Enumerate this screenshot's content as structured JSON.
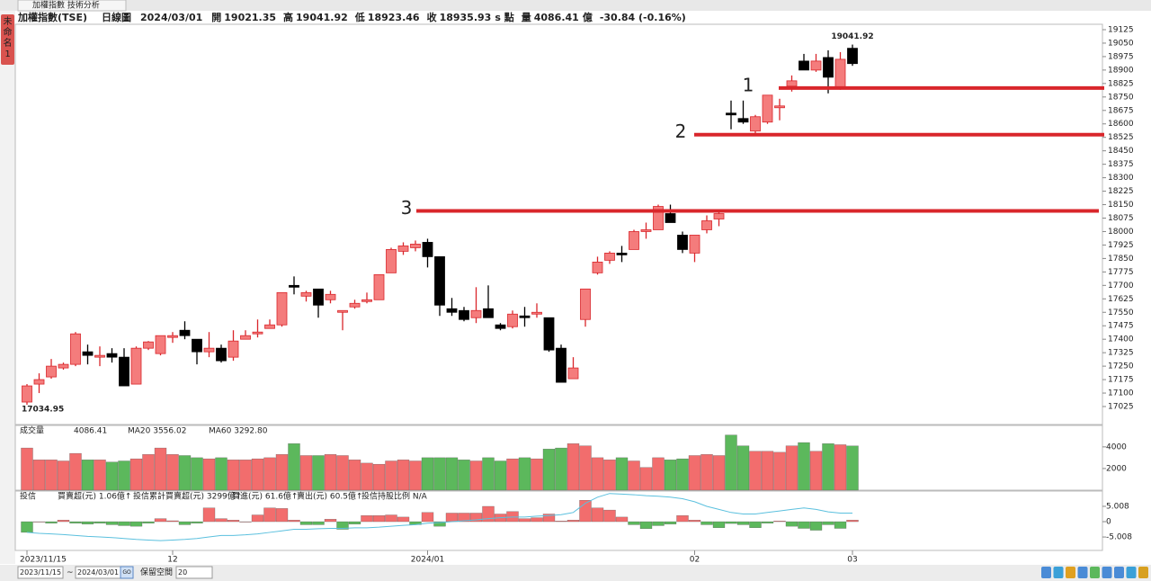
{
  "window_title": "加權指數 技術分析",
  "side_tab": "未命名1",
  "header": {
    "symbol": "加權指數(TSE)",
    "period": "日線圖",
    "date": "2024/03/01",
    "open_label": "開",
    "high_label": "高",
    "low_label": "低",
    "close_label": "收",
    "point_unit": "s 點",
    "volume_label": "量",
    "volume_unit": "億",
    "change": "-30.84 (-0.16%)"
  },
  "chart_data": {
    "type": "candlestick",
    "xlabels": [
      {
        "value": 0,
        "label": "2023/11/15"
      },
      {
        "value": 12,
        "label": "12"
      },
      {
        "value": 33,
        "label": "2024/01"
      },
      {
        "value": 55,
        "label": "02"
      },
      {
        "value": 68,
        "label": "03"
      }
    ],
    "open": [
      17050,
      17150,
      17190,
      17240,
      17260,
      17330,
      17300,
      17320,
      17300,
      17150,
      17350,
      17320,
      17410,
      17450,
      17400,
      17330,
      17350,
      17300,
      17400,
      17430,
      17460,
      17480,
      17700,
      17640,
      17680,
      17620,
      17550,
      17580,
      17610,
      17620,
      17770,
      17890,
      17910,
      17940,
      17860,
      17570,
      17560,
      17520,
      17570,
      17480,
      17470,
      17530,
      17540,
      17520,
      17350,
      17180,
      17510,
      17770,
      17840,
      17880,
      17900,
      18000,
      18010,
      18100,
      17980,
      17880,
      18010,
      18070,
      18660,
      18630,
      18560,
      18610,
      18690,
      18810,
      18950,
      18900,
      18970,
      18800,
      19021.35
    ],
    "high": [
      17150,
      17210,
      17290,
      17270,
      17440,
      17370,
      17360,
      17350,
      17350,
      17360,
      17390,
      17420,
      17440,
      17500,
      17400,
      17440,
      17370,
      17450,
      17450,
      17510,
      17510,
      17660,
      17750,
      17670,
      17680,
      17670,
      17560,
      17620,
      17660,
      17760,
      17910,
      17940,
      17950,
      17960,
      17860,
      17630,
      17580,
      17690,
      17700,
      17490,
      17560,
      17580,
      17600,
      17520,
      17370,
      17300,
      17680,
      17860,
      17890,
      17920,
      18010,
      18050,
      18150,
      18150,
      18000,
      17980,
      18090,
      18120,
      18730,
      18730,
      18650,
      18760,
      18740,
      18870,
      18990,
      18990,
      19010,
      19000,
      19041.92
    ],
    "low": [
      17034.95,
      17100,
      17180,
      17230,
      17250,
      17260,
      17250,
      17270,
      17140,
      17150,
      17340,
      17310,
      17380,
      17400,
      17260,
      17300,
      17270,
      17280,
      17400,
      17410,
      17460,
      17470,
      17650,
      17610,
      17520,
      17600,
      17450,
      17570,
      17600,
      17620,
      17770,
      17870,
      17890,
      17800,
      17530,
      17530,
      17500,
      17490,
      17520,
      17450,
      17460,
      17470,
      17520,
      17330,
      17160,
      17180,
      17470,
      17760,
      17820,
      17830,
      17900,
      17960,
      18010,
      18050,
      17880,
      17830,
      17990,
      18030,
      18570,
      18600,
      18540,
      18600,
      18620,
      18780,
      18900,
      18890,
      18770,
      18790,
      18923.46
    ],
    "close": [
      17140,
      17175,
      17250,
      17260,
      17430,
      17310,
      17310,
      17300,
      17140,
      17350,
      17385,
      17420,
      17420,
      17420,
      17330,
      17350,
      17280,
      17390,
      17420,
      17440,
      17480,
      17660,
      17690,
      17660,
      17590,
      17650,
      17560,
      17600,
      17620,
      17760,
      17900,
      17920,
      17930,
      17860,
      17590,
      17550,
      17510,
      17560,
      17520,
      17460,
      17540,
      17520,
      17550,
      17340,
      17160,
      17240,
      17680,
      17830,
      17880,
      17870,
      18000,
      18010,
      18140,
      18050,
      17900,
      17980,
      18060,
      18100,
      18650,
      18610,
      18640,
      18760,
      18700,
      18840,
      18900,
      18950,
      18860,
      18960,
      18935.93
    ],
    "ylim": [
      17000,
      19150
    ],
    "yticks": [
      17025,
      17100,
      17175,
      17250,
      17325,
      17400,
      17475,
      17550,
      17625,
      17700,
      17775,
      17850,
      17925,
      18000,
      18075,
      18150,
      18225,
      18300,
      18375,
      18450,
      18525,
      18600,
      18675,
      18750,
      18825,
      18900,
      18975,
      19050,
      19125
    ],
    "up_color": "#f47c7c",
    "down_color": "#000000",
    "annotations": [
      {
        "label": "1",
        "value": 18800
      },
      {
        "label": "2",
        "value": 18540
      },
      {
        "label": "3",
        "value": 18115
      }
    ],
    "annotation_color": "#d9262b",
    "volume": {
      "title": "成交量",
      "legend": [
        "MA20 3556.02",
        "MA60 3292.80"
      ],
      "legend_colors": [
        "#d9262b",
        "#1f6fb2"
      ],
      "unit": "億",
      "values": [
        3900,
        2800,
        2800,
        2700,
        3400,
        2800,
        2800,
        2600,
        2700,
        2900,
        3300,
        3900,
        3300,
        3200,
        3000,
        2900,
        3000,
        2800,
        2800,
        2900,
        3000,
        3300,
        4300,
        3200,
        3200,
        3300,
        3200,
        2800,
        2500,
        2400,
        2700,
        2800,
        2700,
        3000,
        3000,
        3000,
        2800,
        2700,
        3000,
        2700,
        2900,
        3000,
        2900,
        3800,
        3900,
        4300,
        4100,
        3000,
        2800,
        3000,
        2700,
        2100,
        3000,
        2800,
        2900,
        3200,
        3300,
        3200,
        5100,
        4100,
        3600,
        3600,
        3500,
        4100,
        4400,
        3600,
        4300,
        4200,
        4086.41
      ],
      "ylim": [
        0,
        5900
      ],
      "yticks": [
        2000,
        4000
      ],
      "up_color": "#f26d6d",
      "down_color": "#5cb85c"
    },
    "trust": {
      "title": "投信",
      "legend": [
        "買賣超(元) 1.06億↑",
        "投信累計買賣超(元) 3299億↑",
        "買進(元) 61.6億↑",
        "賣出(元) 60.5億↑",
        "投信持股比例 N/A"
      ],
      "legend_colors": [
        "#b05fc4",
        "#3aa6c9",
        "#d8b060",
        "#1f6fb2",
        "#8cbf3f"
      ],
      "values": [
        -3.5,
        0,
        -0.5,
        0.5,
        -0.5,
        -0.8,
        -0.5,
        -1,
        -1.3,
        -1.5,
        -0.5,
        1,
        0.3,
        -1,
        -0.5,
        4.5,
        1,
        0.5,
        0,
        2.2,
        4.5,
        4.3,
        0.5,
        -1,
        -1,
        0.8,
        -2.5,
        -0.8,
        2,
        2,
        2.2,
        1.5,
        -1,
        3,
        -1.5,
        2.8,
        2.8,
        2.8,
        5,
        2.5,
        3.3,
        1,
        1.3,
        2.5,
        0.2,
        0.5,
        7,
        4.5,
        3.8,
        1.5,
        -1,
        -2.3,
        -1.3,
        -0.8,
        2,
        0.5,
        -1,
        -2,
        -0.6,
        -1,
        -2,
        -0.5,
        0.2,
        -1.5,
        -2.2,
        -2.8,
        -1,
        -2.2,
        0.5
      ],
      "cumulative": [
        -3.5,
        -3.8,
        -4,
        -4.2,
        -4.5,
        -4.8,
        -5,
        -5.2,
        -5.5,
        -5.8,
        -6,
        -6.2,
        -6,
        -5.8,
        -5.5,
        -5,
        -4.5,
        -4.5,
        -4.3,
        -4,
        -3.5,
        -3,
        -2.5,
        -2.5,
        -2.3,
        -2.2,
        -2.2,
        -2,
        -2,
        -1.8,
        -1.5,
        -1.2,
        -1,
        -0.5,
        -0.3,
        0,
        0.3,
        0.6,
        1,
        1.3,
        1.5,
        1.5,
        1.8,
        2,
        2.3,
        3,
        6,
        8,
        9.2,
        9,
        8.8,
        8.5,
        8.3,
        8,
        7.5,
        6.5,
        5,
        4,
        3,
        2.5,
        2.5,
        3,
        3.5,
        4,
        4.5,
        4,
        3.2,
        2.8,
        2.8
      ],
      "line_color": "#5bc0de",
      "ylim": [
        -9.1,
        9.7
      ],
      "yticks": [
        5.008,
        0,
        -5.008
      ],
      "up_color": "#f26d6d",
      "down_color": "#5cb85c"
    }
  },
  "toolbar": {
    "start_date": "2023/11/15",
    "separator": "~",
    "end_date": "2024/03/01",
    "go": "GO",
    "reserve_label": "保留空間",
    "reserve_value": "20"
  }
}
